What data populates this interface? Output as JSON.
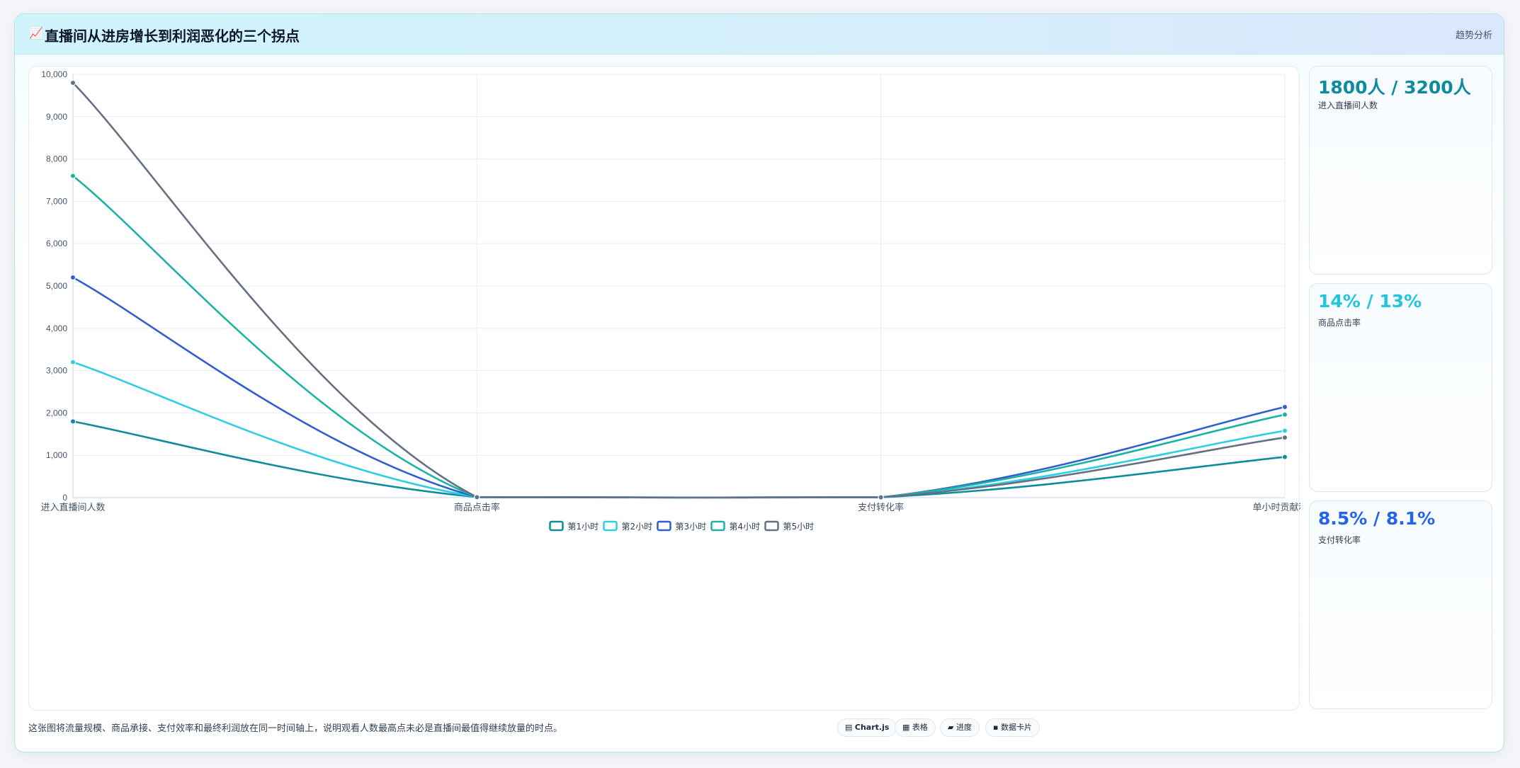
{
  "header": {
    "icon": "📈",
    "title": "直播间从进房增长到利润恶化的三个拐点",
    "tag": "趋势分析"
  },
  "chart_data": {
    "type": "line",
    "categories": [
      "进入直播间人数",
      "商品点击率",
      "支付转化率",
      "单小时贡献利润"
    ],
    "ylim": [
      0,
      10000
    ],
    "yticks": [
      0,
      1000,
      2000,
      3000,
      4000,
      5000,
      6000,
      7000,
      8000,
      9000,
      10000
    ],
    "ytick_labels": [
      "0",
      "1,000",
      "2,000",
      "3,000",
      "4,000",
      "5,000",
      "6,000",
      "7,000",
      "8,000",
      "9,000",
      "10,000"
    ],
    "grid": true,
    "legend_position": "bottom",
    "series": [
      {
        "name": "第1小时",
        "color": "#0e8c9c",
        "values": [
          1800,
          14,
          8.5,
          960
        ]
      },
      {
        "name": "第2小时",
        "color": "#2ecfe0",
        "values": [
          3200,
          13,
          8.1,
          1580
        ]
      },
      {
        "name": "第3小时",
        "color": "#2f5fcf",
        "values": [
          5200,
          12,
          7.6,
          2140
        ]
      },
      {
        "name": "第4小时",
        "color": "#1bb3a5",
        "values": [
          7600,
          11,
          7.0,
          1960
        ]
      },
      {
        "name": "第5小时",
        "color": "#667085",
        "values": [
          9800,
          10,
          6.5,
          1420
        ]
      }
    ]
  },
  "kpis": [
    {
      "value": "1800人 / 3200人",
      "label": "进入直播间人数",
      "color": "#0e8c9c"
    },
    {
      "value": "14% / 13%",
      "label": "商品点击率",
      "color": "#22c6dc"
    },
    {
      "value": "8.5% / 8.1%",
      "label": "支付转化率",
      "color": "#2563eb"
    }
  ],
  "note": "这张图将流量规模、商品承接、支付效率和最终利润放在同一时间轴上，说明观看人数最高点未必是直播间最值得继续放量的时点。",
  "pills": [
    {
      "icon": "▤",
      "label": "Chart.js",
      "bold": true
    },
    {
      "icon": "▦",
      "label": "表格",
      "bold": false
    },
    {
      "icon": "▰",
      "label": "进度",
      "bold": false
    },
    {
      "icon": "▪",
      "label": "数据卡片",
      "bold": false
    }
  ]
}
